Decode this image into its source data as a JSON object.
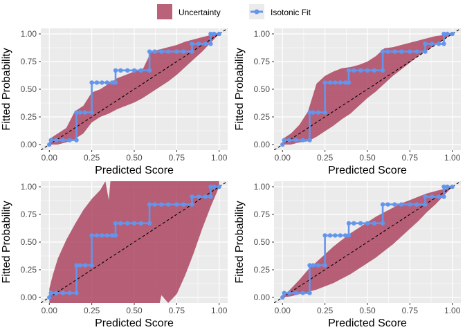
{
  "legend": {
    "items": [
      {
        "label": "Uncertainty",
        "kind": "band",
        "color": "#A83B57"
      },
      {
        "label": "Isotonic Fit",
        "kind": "line-point",
        "color": "#6495ED"
      }
    ],
    "placement": "top"
  },
  "colors": {
    "panel_bg": "#EBEBEB",
    "grid": "#FFFFFF",
    "band": "#A83B57",
    "band_opacity": 0.8,
    "fit": "#6495ED",
    "diagonal": "#000000"
  },
  "chart_data": [
    {
      "type": "line",
      "xlabel": "Predicted Score",
      "ylabel": "Fitted Probability",
      "xlim": [
        -0.05,
        1.05
      ],
      "ylim": [
        -0.05,
        1.05
      ],
      "xticks": [
        "0.00",
        "0.25",
        "0.50",
        "0.75",
        "1.00"
      ],
      "yticks": [
        "0.00",
        "0.25",
        "0.50",
        "0.75",
        "1.00"
      ],
      "grid": true,
      "diagonal": true,
      "fit": {
        "x": [
          0.0,
          0.01,
          0.04,
          0.08,
          0.12,
          0.16,
          0.16,
          0.18,
          0.21,
          0.25,
          0.25,
          0.28,
          0.31,
          0.34,
          0.37,
          0.39,
          0.39,
          0.42,
          0.46,
          0.5,
          0.54,
          0.59,
          0.59,
          0.62,
          0.66,
          0.7,
          0.75,
          0.79,
          0.84,
          0.84,
          0.88,
          0.92,
          0.95,
          0.95,
          0.97,
          1.0
        ],
        "y": [
          0.0,
          0.04,
          0.04,
          0.04,
          0.04,
          0.04,
          0.29,
          0.29,
          0.29,
          0.29,
          0.56,
          0.56,
          0.56,
          0.56,
          0.56,
          0.56,
          0.67,
          0.67,
          0.67,
          0.67,
          0.67,
          0.67,
          0.84,
          0.84,
          0.84,
          0.84,
          0.84,
          0.84,
          0.84,
          0.91,
          0.91,
          0.91,
          0.91,
          1.0,
          1.0,
          1.0
        ]
      },
      "band": {
        "x": [
          0.0,
          0.05,
          0.1,
          0.15,
          0.2,
          0.25,
          0.3,
          0.35,
          0.4,
          0.45,
          0.5,
          0.55,
          0.6,
          0.65,
          0.7,
          0.75,
          0.8,
          0.85,
          0.9,
          0.95,
          1.0
        ],
        "upper": [
          0.05,
          0.1,
          0.15,
          0.3,
          0.35,
          0.47,
          0.5,
          0.55,
          0.6,
          0.63,
          0.66,
          0.68,
          0.84,
          0.86,
          0.88,
          0.9,
          0.93,
          0.95,
          0.97,
          0.99,
          1.0
        ],
        "lower": [
          0.0,
          0.0,
          0.02,
          0.05,
          0.1,
          0.2,
          0.25,
          0.28,
          0.32,
          0.35,
          0.38,
          0.42,
          0.47,
          0.52,
          0.57,
          0.63,
          0.7,
          0.77,
          0.84,
          0.92,
          1.0
        ]
      }
    },
    {
      "type": "line",
      "xlabel": "Predicted Score",
      "ylabel": "Fitted Probability",
      "xlim": [
        -0.05,
        1.05
      ],
      "ylim": [
        -0.05,
        1.05
      ],
      "xticks": [
        "0.00",
        "0.25",
        "0.50",
        "0.75",
        "1.00"
      ],
      "yticks": [
        "0.00",
        "0.25",
        "0.50",
        "0.75",
        "1.00"
      ],
      "grid": true,
      "diagonal": true,
      "fit": {
        "x": [
          0.0,
          0.01,
          0.04,
          0.08,
          0.12,
          0.16,
          0.16,
          0.18,
          0.21,
          0.25,
          0.25,
          0.28,
          0.31,
          0.34,
          0.37,
          0.39,
          0.39,
          0.42,
          0.46,
          0.5,
          0.54,
          0.59,
          0.59,
          0.62,
          0.66,
          0.7,
          0.75,
          0.79,
          0.84,
          0.84,
          0.88,
          0.92,
          0.95,
          0.95,
          0.97,
          1.0
        ],
        "y": [
          0.0,
          0.04,
          0.04,
          0.04,
          0.04,
          0.04,
          0.29,
          0.29,
          0.29,
          0.29,
          0.56,
          0.56,
          0.56,
          0.56,
          0.56,
          0.56,
          0.67,
          0.67,
          0.67,
          0.67,
          0.67,
          0.67,
          0.84,
          0.84,
          0.84,
          0.84,
          0.84,
          0.84,
          0.84,
          0.91,
          0.91,
          0.91,
          0.91,
          1.0,
          1.0,
          1.0
        ]
      },
      "band": {
        "x": [
          0.0,
          0.05,
          0.1,
          0.15,
          0.2,
          0.25,
          0.3,
          0.35,
          0.4,
          0.45,
          0.5,
          0.55,
          0.6,
          0.65,
          0.7,
          0.75,
          0.8,
          0.85,
          0.9,
          0.95,
          1.0
        ],
        "upper": [
          0.05,
          0.1,
          0.18,
          0.3,
          0.55,
          0.62,
          0.66,
          0.69,
          0.7,
          0.72,
          0.75,
          0.8,
          0.87,
          0.88,
          0.9,
          0.92,
          0.94,
          0.96,
          0.98,
          0.99,
          1.0
        ],
        "lower": [
          0.0,
          0.0,
          0.02,
          0.03,
          0.07,
          0.12,
          0.17,
          0.23,
          0.28,
          0.35,
          0.42,
          0.48,
          0.55,
          0.62,
          0.68,
          0.74,
          0.8,
          0.85,
          0.9,
          0.95,
          1.0
        ]
      }
    },
    {
      "type": "line",
      "xlabel": "Predicted Score",
      "ylabel": "Fitted Probability",
      "xlim": [
        -0.05,
        1.05
      ],
      "ylim": [
        -0.05,
        1.05
      ],
      "xticks": [
        "0.00",
        "0.25",
        "0.50",
        "0.75",
        "1.00"
      ],
      "yticks": [
        "0.00",
        "0.25",
        "0.50",
        "0.75",
        "1.00"
      ],
      "grid": true,
      "diagonal": true,
      "fit": {
        "x": [
          0.0,
          0.01,
          0.04,
          0.08,
          0.12,
          0.16,
          0.16,
          0.18,
          0.21,
          0.25,
          0.25,
          0.28,
          0.31,
          0.34,
          0.37,
          0.39,
          0.39,
          0.42,
          0.46,
          0.5,
          0.54,
          0.59,
          0.59,
          0.62,
          0.66,
          0.7,
          0.75,
          0.79,
          0.84,
          0.84,
          0.88,
          0.92,
          0.95,
          0.95,
          0.97,
          1.0
        ],
        "y": [
          0.0,
          0.04,
          0.04,
          0.04,
          0.04,
          0.04,
          0.29,
          0.29,
          0.29,
          0.29,
          0.56,
          0.56,
          0.56,
          0.56,
          0.56,
          0.56,
          0.67,
          0.67,
          0.67,
          0.67,
          0.67,
          0.67,
          0.84,
          0.84,
          0.84,
          0.84,
          0.84,
          0.84,
          0.84,
          0.91,
          0.91,
          0.91,
          0.91,
          1.0,
          1.0,
          1.0
        ]
      },
      "band": {
        "x": [
          0.0,
          0.02,
          0.05,
          0.1,
          0.15,
          0.2,
          0.25,
          0.3,
          0.33,
          0.35,
          0.36,
          0.4,
          0.45,
          0.5,
          0.6,
          0.65,
          0.66,
          0.7,
          0.75,
          0.8,
          0.85,
          0.9,
          0.95,
          1.0
        ],
        "upper": [
          0.08,
          0.2,
          0.35,
          0.52,
          0.66,
          0.79,
          0.89,
          0.97,
          1.05,
          0.88,
          1.05,
          1.05,
          1.05,
          1.05,
          1.05,
          1.05,
          1.05,
          1.05,
          1.05,
          1.05,
          1.05,
          1.05,
          1.05,
          1.05
        ],
        "lower": [
          -0.05,
          -0.05,
          -0.05,
          -0.05,
          -0.05,
          -0.05,
          -0.05,
          -0.05,
          -0.05,
          -0.05,
          -0.05,
          -0.05,
          -0.05,
          -0.05,
          -0.05,
          -0.05,
          0.02,
          -0.05,
          0.03,
          0.2,
          0.4,
          0.62,
          0.82,
          1.0
        ]
      }
    },
    {
      "type": "line",
      "xlabel": "Predicted Score",
      "ylabel": "Fitted Probability",
      "xlim": [
        -0.05,
        1.05
      ],
      "ylim": [
        -0.05,
        1.05
      ],
      "xticks": [
        "0.00",
        "0.25",
        "0.50",
        "0.75",
        "1.00"
      ],
      "yticks": [
        "0.00",
        "0.25",
        "0.50",
        "0.75",
        "1.00"
      ],
      "grid": true,
      "diagonal": true,
      "fit": {
        "x": [
          0.0,
          0.01,
          0.04,
          0.08,
          0.12,
          0.16,
          0.16,
          0.18,
          0.21,
          0.25,
          0.25,
          0.28,
          0.31,
          0.34,
          0.37,
          0.39,
          0.39,
          0.42,
          0.46,
          0.5,
          0.54,
          0.59,
          0.59,
          0.62,
          0.66,
          0.7,
          0.75,
          0.79,
          0.84,
          0.84,
          0.88,
          0.92,
          0.95,
          0.95,
          0.97,
          1.0
        ],
        "y": [
          0.0,
          0.04,
          0.04,
          0.04,
          0.04,
          0.04,
          0.29,
          0.29,
          0.29,
          0.29,
          0.56,
          0.56,
          0.56,
          0.56,
          0.56,
          0.56,
          0.67,
          0.67,
          0.67,
          0.67,
          0.67,
          0.67,
          0.84,
          0.84,
          0.84,
          0.84,
          0.84,
          0.84,
          0.84,
          0.91,
          0.91,
          0.91,
          0.91,
          1.0,
          1.0,
          1.0
        ]
      },
      "band": {
        "x": [
          0.0,
          0.05,
          0.1,
          0.15,
          0.2,
          0.25,
          0.3,
          0.35,
          0.4,
          0.45,
          0.5,
          0.55,
          0.6,
          0.65,
          0.7,
          0.75,
          0.8,
          0.85,
          0.9,
          0.95,
          1.0
        ],
        "upper": [
          0.0,
          0.08,
          0.16,
          0.25,
          0.32,
          0.39,
          0.46,
          0.52,
          0.58,
          0.63,
          0.68,
          0.73,
          0.77,
          0.81,
          0.85,
          0.88,
          0.91,
          0.94,
          0.96,
          0.98,
          1.0
        ],
        "lower": [
          0.0,
          0.01,
          0.03,
          0.05,
          0.07,
          0.1,
          0.13,
          0.17,
          0.21,
          0.26,
          0.31,
          0.36,
          0.42,
          0.48,
          0.55,
          0.62,
          0.69,
          0.77,
          0.84,
          0.92,
          1.0
        ]
      }
    }
  ]
}
